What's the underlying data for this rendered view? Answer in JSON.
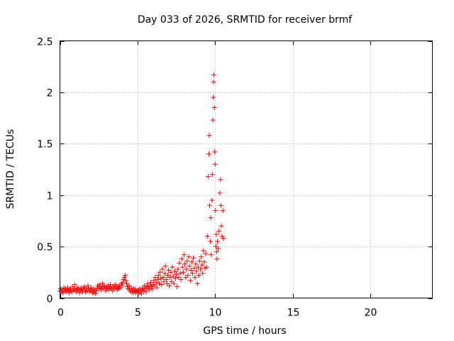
{
  "chart_data": {
    "type": "scatter",
    "title": "Day 033 of 2026, SRMTID for receiver brmf",
    "xlabel": "GPS time / hours",
    "ylabel": "SRMTID / TECUs",
    "xlim": [
      0,
      24
    ],
    "ylim": [
      0,
      2.5
    ],
    "xticks": [
      0,
      5,
      10,
      15,
      20
    ],
    "xtick_labels": [
      "0",
      "5",
      "10",
      "15",
      "20"
    ],
    "yticks": [
      0,
      0.5,
      1,
      1.5,
      2,
      2.5
    ],
    "ytick_labels": [
      "0",
      "0.5",
      "1",
      "1.5",
      "2",
      "2.5"
    ],
    "grid": true,
    "marker": "+",
    "color": "#ff0000",
    "series": [
      {
        "name": "SRMTID",
        "points": [
          [
            0.0,
            0.07
          ],
          [
            0.05,
            0.09
          ],
          [
            0.1,
            0.06
          ],
          [
            0.15,
            0.08
          ],
          [
            0.2,
            0.05
          ],
          [
            0.25,
            0.1
          ],
          [
            0.3,
            0.07
          ],
          [
            0.35,
            0.09
          ],
          [
            0.4,
            0.06
          ],
          [
            0.45,
            0.08
          ],
          [
            0.5,
            0.1
          ],
          [
            0.55,
            0.07
          ],
          [
            0.6,
            0.05
          ],
          [
            0.65,
            0.09
          ],
          [
            0.7,
            0.08
          ],
          [
            0.75,
            0.06
          ],
          [
            0.8,
            0.11
          ],
          [
            0.85,
            0.07
          ],
          [
            0.9,
            0.09
          ],
          [
            0.95,
            0.13
          ],
          [
            1.0,
            0.08
          ],
          [
            1.05,
            0.06
          ],
          [
            1.1,
            0.1
          ],
          [
            1.15,
            0.07
          ],
          [
            1.2,
            0.09
          ],
          [
            1.25,
            0.05
          ],
          [
            1.3,
            0.08
          ],
          [
            1.35,
            0.1
          ],
          [
            1.4,
            0.07
          ],
          [
            1.45,
            0.06
          ],
          [
            1.5,
            0.09
          ],
          [
            1.55,
            0.11
          ],
          [
            1.6,
            0.08
          ],
          [
            1.65,
            0.06
          ],
          [
            1.7,
            0.1
          ],
          [
            1.75,
            0.07
          ],
          [
            1.8,
            0.12
          ],
          [
            1.85,
            0.09
          ],
          [
            1.9,
            0.06
          ],
          [
            1.95,
            0.08
          ],
          [
            2.0,
            0.1
          ],
          [
            2.05,
            0.07
          ],
          [
            2.1,
            0.05
          ],
          [
            2.15,
            0.09
          ],
          [
            2.2,
            0.06
          ],
          [
            2.25,
            0.08
          ],
          [
            2.3,
            0.04
          ],
          [
            2.35,
            0.07
          ],
          [
            2.4,
            0.1
          ],
          [
            2.45,
            0.12
          ],
          [
            2.5,
            0.09
          ],
          [
            2.55,
            0.13
          ],
          [
            2.6,
            0.1
          ],
          [
            2.65,
            0.08
          ],
          [
            2.7,
            0.11
          ],
          [
            2.75,
            0.14
          ],
          [
            2.8,
            0.09
          ],
          [
            2.85,
            0.12
          ],
          [
            2.9,
            0.1
          ],
          [
            2.95,
            0.07
          ],
          [
            3.0,
            0.11
          ],
          [
            3.05,
            0.09
          ],
          [
            3.1,
            0.12
          ],
          [
            3.15,
            0.08
          ],
          [
            3.2,
            0.1
          ],
          [
            3.25,
            0.13
          ],
          [
            3.3,
            0.09
          ],
          [
            3.35,
            0.11
          ],
          [
            3.4,
            0.07
          ],
          [
            3.45,
            0.1
          ],
          [
            3.5,
            0.12
          ],
          [
            3.55,
            0.09
          ],
          [
            3.6,
            0.13
          ],
          [
            3.65,
            0.1
          ],
          [
            3.7,
            0.08
          ],
          [
            3.75,
            0.11
          ],
          [
            3.8,
            0.09
          ],
          [
            3.85,
            0.12
          ],
          [
            3.9,
            0.1
          ],
          [
            3.95,
            0.14
          ],
          [
            4.0,
            0.12
          ],
          [
            4.05,
            0.15
          ],
          [
            4.1,
            0.18
          ],
          [
            4.15,
            0.2
          ],
          [
            4.2,
            0.22
          ],
          [
            4.25,
            0.17
          ],
          [
            4.3,
            0.14
          ],
          [
            4.35,
            0.11
          ],
          [
            4.4,
            0.09
          ],
          [
            4.45,
            0.12
          ],
          [
            4.5,
            0.08
          ],
          [
            4.55,
            0.06
          ],
          [
            4.6,
            0.1
          ],
          [
            4.65,
            0.07
          ],
          [
            4.7,
            0.05
          ],
          [
            4.75,
            0.09
          ],
          [
            4.8,
            0.06
          ],
          [
            4.85,
            0.08
          ],
          [
            4.9,
            0.05
          ],
          [
            4.95,
            0.07
          ],
          [
            5.0,
            0.06
          ],
          [
            5.05,
            0.08
          ],
          [
            5.1,
            0.05
          ],
          [
            5.15,
            0.09
          ],
          [
            5.2,
            0.06
          ],
          [
            5.25,
            0.04
          ],
          [
            5.3,
            0.08
          ],
          [
            5.35,
            0.1
          ],
          [
            5.4,
            0.07
          ],
          [
            5.45,
            0.12
          ],
          [
            5.5,
            0.09
          ],
          [
            5.55,
            0.06
          ],
          [
            5.6,
            0.11
          ],
          [
            5.65,
            0.14
          ],
          [
            5.7,
            0.1
          ],
          [
            5.75,
            0.08
          ],
          [
            5.8,
            0.12
          ],
          [
            5.85,
            0.15
          ],
          [
            5.9,
            0.11
          ],
          [
            5.95,
            0.09
          ],
          [
            6.0,
            0.13
          ],
          [
            6.05,
            0.17
          ],
          [
            6.1,
            0.12
          ],
          [
            6.15,
            0.2
          ],
          [
            6.2,
            0.15
          ],
          [
            6.25,
            0.1
          ],
          [
            6.3,
            0.18
          ],
          [
            6.35,
            0.22
          ],
          [
            6.4,
            0.14
          ],
          [
            6.45,
            0.25
          ],
          [
            6.5,
            0.19
          ],
          [
            6.55,
            0.13
          ],
          [
            6.6,
            0.28
          ],
          [
            6.65,
            0.2
          ],
          [
            6.7,
            0.16
          ],
          [
            6.75,
            0.24
          ],
          [
            6.8,
            0.31
          ],
          [
            6.85,
            0.18
          ],
          [
            6.9,
            0.14
          ],
          [
            6.95,
            0.22
          ],
          [
            7.0,
            0.27
          ],
          [
            7.05,
            0.12
          ],
          [
            7.1,
            0.2
          ],
          [
            7.15,
            0.25
          ],
          [
            7.2,
            0.16
          ],
          [
            7.25,
            0.3
          ],
          [
            7.3,
            0.21
          ],
          [
            7.35,
            0.14
          ],
          [
            7.4,
            0.26
          ],
          [
            7.45,
            0.19
          ],
          [
            7.5,
            0.23
          ],
          [
            7.55,
            0.11
          ],
          [
            7.6,
            0.28
          ],
          [
            7.65,
            0.2
          ],
          [
            7.7,
            0.34
          ],
          [
            7.75,
            0.24
          ],
          [
            7.8,
            0.18
          ],
          [
            7.85,
            0.38
          ],
          [
            7.9,
            0.3
          ],
          [
            7.95,
            0.25
          ],
          [
            8.0,
            0.42
          ],
          [
            8.05,
            0.33
          ],
          [
            8.1,
            0.2
          ],
          [
            8.15,
            0.28
          ],
          [
            8.2,
            0.36
          ],
          [
            8.25,
            0.22
          ],
          [
            8.3,
            0.4
          ],
          [
            8.35,
            0.31
          ],
          [
            8.4,
            0.17
          ],
          [
            8.45,
            0.27
          ],
          [
            8.5,
            0.35
          ],
          [
            8.55,
            0.24
          ],
          [
            8.6,
            0.39
          ],
          [
            8.65,
            0.29
          ],
          [
            8.7,
            0.2
          ],
          [
            8.75,
            0.33
          ],
          [
            8.8,
            0.26
          ],
          [
            8.85,
            0.14
          ],
          [
            8.9,
            0.3
          ],
          [
            8.95,
            0.22
          ],
          [
            9.0,
            0.36
          ],
          [
            9.05,
            0.28
          ],
          [
            9.1,
            0.4
          ],
          [
            9.15,
            0.32
          ],
          [
            9.2,
            0.24
          ],
          [
            9.25,
            0.46
          ],
          [
            9.3,
            0.35
          ],
          [
            9.35,
            0.29
          ],
          [
            9.4,
            0.43
          ],
          [
            9.45,
            0.3
          ],
          [
            9.5,
            0.6
          ],
          [
            9.55,
            1.18
          ],
          [
            9.6,
            1.4
          ],
          [
            9.62,
            1.58
          ],
          [
            9.65,
            0.9
          ],
          [
            9.7,
            0.55
          ],
          [
            9.72,
            0.78
          ],
          [
            9.75,
            0.42
          ],
          [
            9.8,
            0.95
          ],
          [
            9.82,
            1.2
          ],
          [
            9.85,
            1.73
          ],
          [
            9.88,
            1.95
          ],
          [
            9.9,
            2.1
          ],
          [
            9.92,
            2.17
          ],
          [
            9.95,
            1.85
          ],
          [
            9.97,
            1.42
          ],
          [
            10.0,
            1.3
          ],
          [
            10.02,
            0.85
          ],
          [
            10.05,
            0.5
          ],
          [
            10.08,
            0.62
          ],
          [
            10.1,
            0.45
          ],
          [
            10.12,
            0.38
          ],
          [
            10.15,
            0.55
          ],
          [
            10.2,
            0.48
          ],
          [
            10.25,
            0.65
          ],
          [
            10.3,
            1.02
          ],
          [
            10.35,
            1.15
          ],
          [
            10.38,
            0.9
          ],
          [
            10.4,
            0.7
          ],
          [
            10.45,
            0.6
          ],
          [
            10.5,
            0.85
          ],
          [
            10.52,
            0.58
          ]
        ]
      }
    ]
  }
}
